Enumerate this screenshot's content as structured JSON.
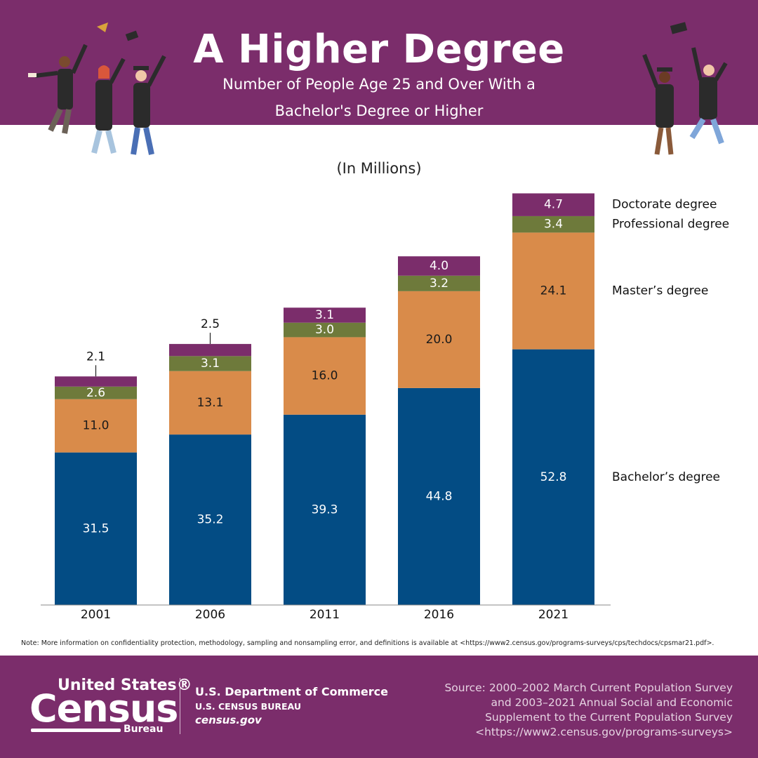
{
  "header": {
    "title": "A Higher Degree",
    "subtitle_line1": "Number of People Age 25 and Over With a",
    "subtitle_line2": "Bachelor's Degree or Higher"
  },
  "unit_label": "(In Millions)",
  "chart_data": {
    "type": "bar",
    "stacked": true,
    "categories": [
      "2001",
      "2006",
      "2011",
      "2016",
      "2021"
    ],
    "series": [
      {
        "name": "Bachelor’s degree",
        "values": [
          31.5,
          35.2,
          39.3,
          44.8,
          52.8
        ],
        "labels": [
          "31.5",
          "35.2",
          "39.3",
          "44.8",
          "52.8"
        ],
        "color": "#034c84"
      },
      {
        "name": "Master’s degree",
        "values": [
          11.0,
          13.1,
          16.0,
          20.0,
          24.1
        ],
        "labels": [
          "11.0",
          "13.1",
          "16.0",
          "20.0",
          "24.1"
        ],
        "color": "#d98b4a"
      },
      {
        "name": "Professional degree",
        "values": [
          2.6,
          3.1,
          3.0,
          3.2,
          3.4
        ],
        "labels": [
          "2.6",
          "3.1",
          "3.0",
          "3.2",
          "3.4"
        ],
        "color": "#6e7a3b"
      },
      {
        "name": "Doctorate degree",
        "values": [
          2.1,
          2.5,
          3.1,
          4.0,
          4.7
        ],
        "labels": [
          "2.1",
          "2.5",
          "3.1",
          "4.0",
          "4.7"
        ],
        "color": "#7b2d6b"
      }
    ],
    "legend_position": "right",
    "grid": false
  },
  "note": "Note: More information on confidentiality protection, methodology, sampling and nonsampling error, and definitions is available at <https://www2.census.gov/programs-surveys/cps/techdocs/cpsmar21.pdf>.",
  "footer": {
    "logo_top": "United States®",
    "logo_main": "Census",
    "logo_sub": "Bureau",
    "dept": "U.S. Department of Commerce",
    "bureau": "U.S. CENSUS BUREAU",
    "site": "census.gov",
    "source_lines": [
      "Source: 2000–2002 March Current Population Survey",
      "and 2003–2021 Annual Social and Economic",
      "Supplement to the Current Population Survey",
      "<https://www2.census.gov/programs-surveys>"
    ]
  },
  "colors": {
    "brand_purple": "#7b2d6b",
    "bachelor_blue": "#034c84",
    "master_orange": "#d98b4a",
    "professional_olive": "#6e7a3b",
    "doctorate_purple": "#7b2d6b"
  }
}
